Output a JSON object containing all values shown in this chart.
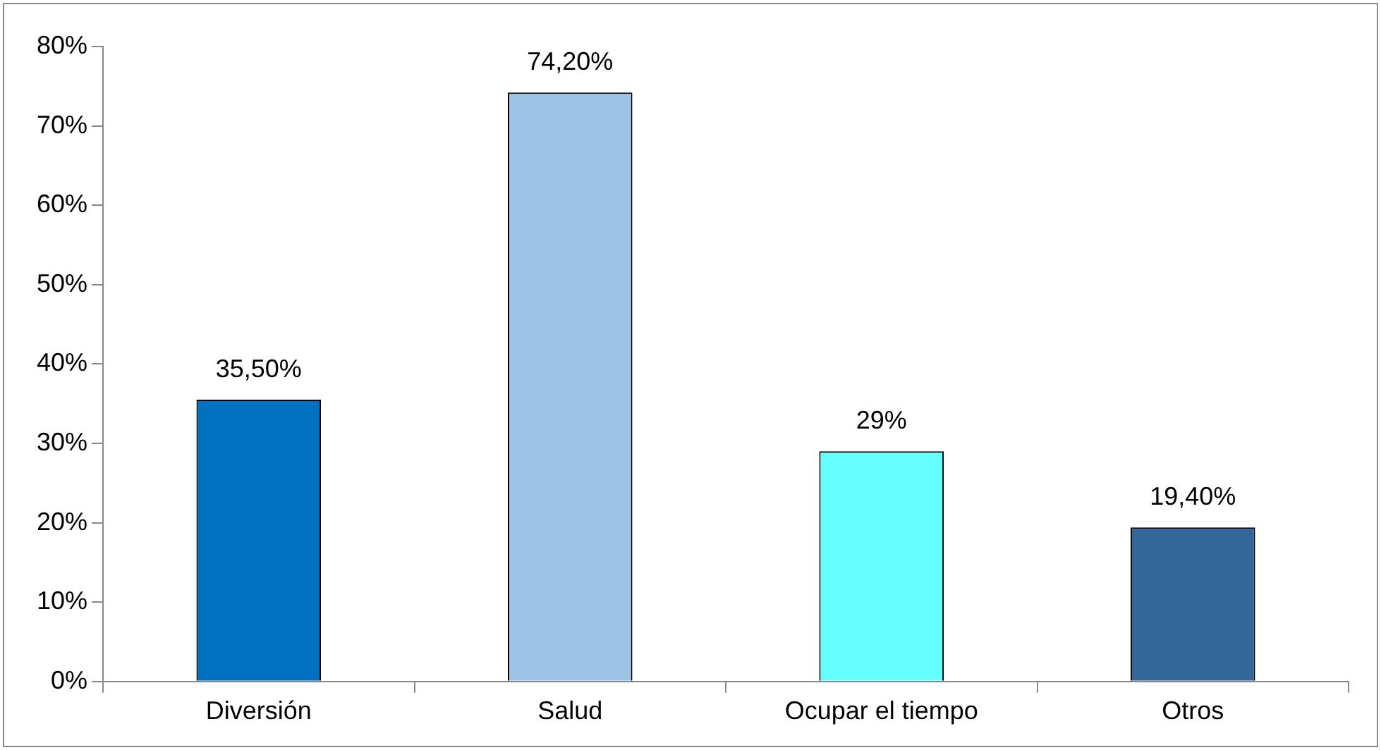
{
  "chart_data": {
    "type": "bar",
    "categories": [
      "Diversión",
      "Salud",
      "Ocupar el tiempo",
      "Otros"
    ],
    "values": [
      35.5,
      74.2,
      29,
      19.4
    ],
    "colors": [
      "#0070c0",
      "#9dc3e6",
      "#66ffff",
      "#336699"
    ],
    "value_labels": [
      "35,50%",
      "74,20%",
      "29%",
      "19,40%"
    ],
    "ylim": [
      0,
      80
    ],
    "yticks": [
      {
        "value": 0,
        "label": "0%"
      },
      {
        "value": 10,
        "label": "10%"
      },
      {
        "value": 20,
        "label": "20%"
      },
      {
        "value": 30,
        "label": "30%"
      },
      {
        "value": 40,
        "label": "40%"
      },
      {
        "value": 50,
        "label": "50%"
      },
      {
        "value": 60,
        "label": "60%"
      },
      {
        "value": 70,
        "label": "70%"
      },
      {
        "value": 80,
        "label": "80%"
      }
    ]
  }
}
